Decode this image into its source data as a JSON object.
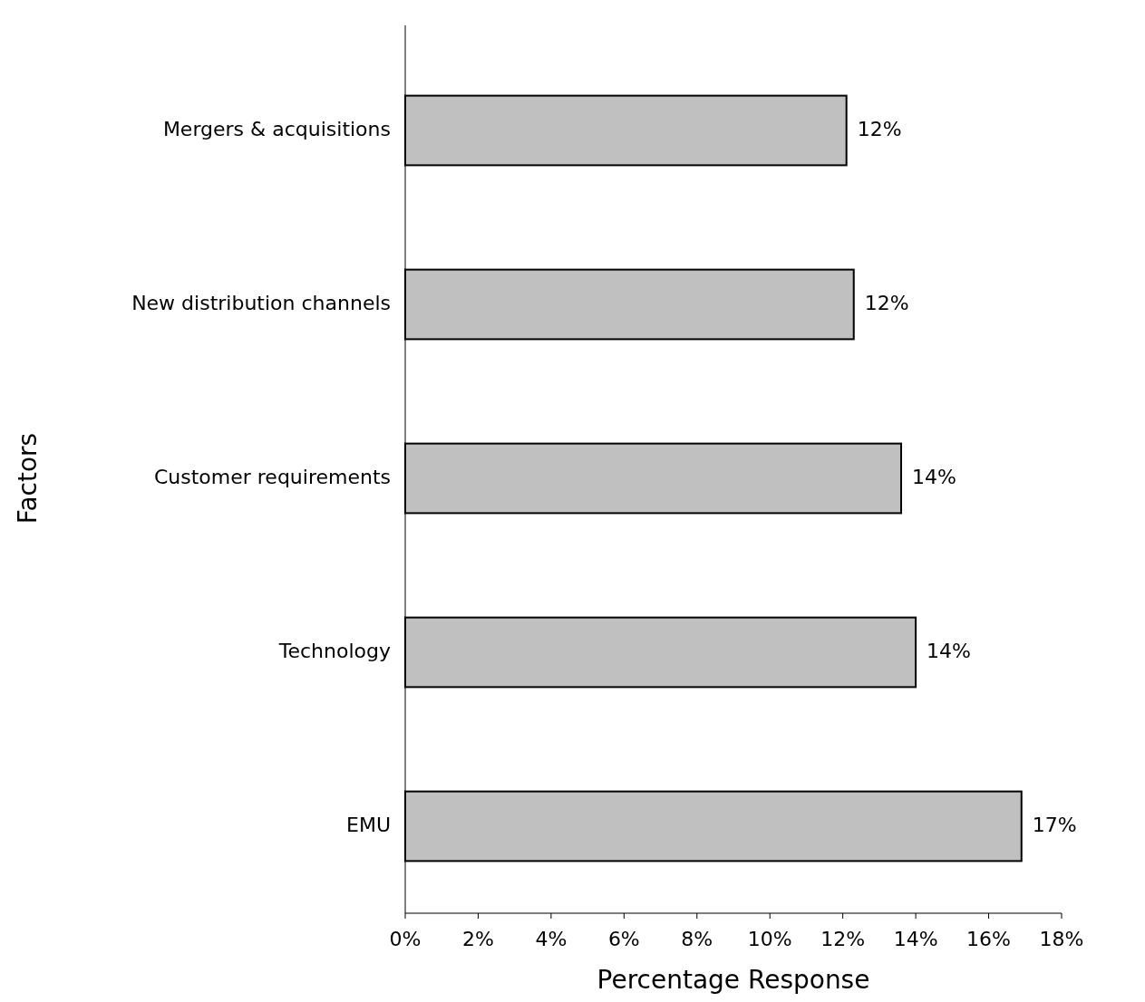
{
  "chart_data": {
    "type": "bar",
    "orientation": "horizontal",
    "xlabel": "Percentage Response",
    "ylabel": "Factors",
    "categories": [
      "Mergers & acquisitions",
      "New distribution channels",
      "Customer requirements",
      "Technology",
      "EMU"
    ],
    "values": [
      12.1,
      12.3,
      13.6,
      14.0,
      16.9
    ],
    "value_labels": [
      "12%",
      "12%",
      "14%",
      "14%",
      "17%"
    ],
    "color": "#c0c0c0",
    "xlim": [
      0,
      18
    ],
    "xticks": [
      {
        "value": 0,
        "label": "0%"
      },
      {
        "value": 2,
        "label": "2%"
      },
      {
        "value": 4,
        "label": "4%"
      },
      {
        "value": 6,
        "label": "6%"
      },
      {
        "value": 8,
        "label": "8%"
      },
      {
        "value": 10,
        "label": "10%"
      },
      {
        "value": 12,
        "label": "12%"
      },
      {
        "value": 14,
        "label": "14%"
      },
      {
        "value": 16,
        "label": "16%"
      },
      {
        "value": 18,
        "label": "18%"
      }
    ],
    "grid": false
  }
}
